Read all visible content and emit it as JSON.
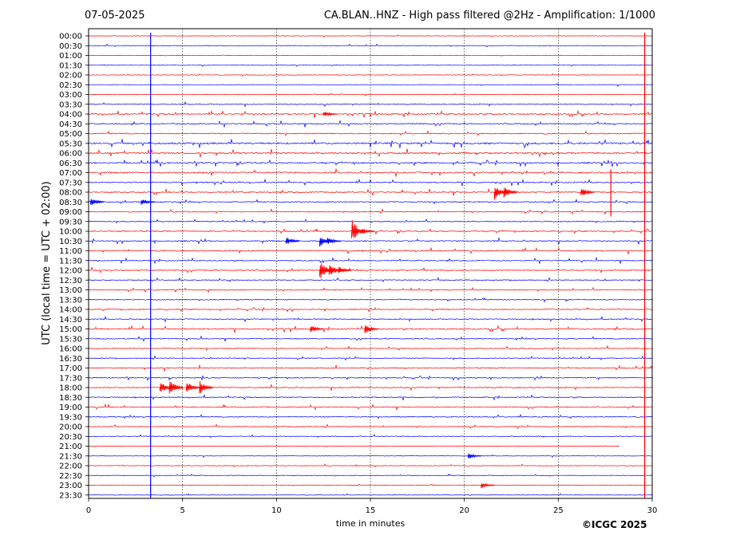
{
  "header": {
    "date": "07-05-2025",
    "title": "CA.BLAN..HNZ - High pass filtered @2Hz - Amplification: 1/1000"
  },
  "footer": {
    "copyright": "©ICGC 2025"
  },
  "chart_data": {
    "type": "line",
    "title": "CA.BLAN..HNZ - High pass filtered @2Hz - Amplification: 1/1000",
    "xlabel": "time in minutes",
    "ylabel": "UTC (local time = UTC + 02:00)",
    "xlim": [
      0,
      30
    ],
    "x_ticks": [
      0,
      5,
      10,
      15,
      20,
      25,
      30
    ],
    "x_tick_labels": [
      "0",
      "5",
      "10",
      "15",
      "20",
      "25",
      "30"
    ],
    "vertical_gridlines_at": [
      5,
      10,
      15,
      20,
      25
    ],
    "grid": "dotted vertical",
    "trace_colors": [
      "#ff0000",
      "#0000ff"
    ],
    "trace_labels": [
      "00:00",
      "00:30",
      "01:00",
      "01:30",
      "02:00",
      "02:30",
      "03:00",
      "03:30",
      "04:00",
      "04:30",
      "05:00",
      "05:30",
      "06:00",
      "06:30",
      "07:00",
      "07:30",
      "08:00",
      "08:30",
      "09:00",
      "09:30",
      "10:00",
      "10:30",
      "11:00",
      "11:30",
      "12:00",
      "12:30",
      "13:00",
      "13:30",
      "14:00",
      "14:30",
      "15:00",
      "15:30",
      "16:00",
      "16:30",
      "17:00",
      "17:30",
      "18:00",
      "18:30",
      "19:00",
      "19:30",
      "20:00",
      "20:30",
      "21:00",
      "21:30",
      "22:00",
      "22:30",
      "23:00",
      "23:30"
    ],
    "trace_noise_level": [
      0.4,
      0.5,
      0.4,
      0.5,
      0.5,
      0.5,
      0.5,
      0.8,
      1.2,
      1.1,
      1.0,
      1.6,
      1.5,
      1.3,
      1.4,
      1.1,
      1.1,
      1.0,
      0.9,
      0.9,
      1.0,
      1.1,
      1.1,
      1.0,
      1.1,
      0.9,
      0.9,
      0.8,
      0.9,
      0.9,
      1.2,
      0.9,
      0.9,
      0.8,
      1.0,
      0.9,
      1.0,
      0.9,
      0.9,
      0.9,
      0.8,
      0.7,
      0.3,
      0.4,
      0.6,
      0.5,
      0.5,
      0.5
    ],
    "trace_end_minute": [
      30,
      30,
      30,
      30,
      30,
      30,
      30,
      30,
      30,
      30,
      30,
      30,
      30,
      30,
      30,
      30,
      30,
      30,
      30,
      30,
      30,
      30,
      30,
      30,
      30,
      30,
      30,
      30,
      30,
      30,
      30,
      30,
      30,
      30,
      30,
      30,
      30,
      30,
      30,
      30,
      30,
      30,
      28.3,
      30,
      30,
      30,
      30,
      30
    ],
    "events": [
      {
        "trace": 8,
        "minute": 12.5,
        "amplitude": 4
      },
      {
        "trace": 16,
        "minute": 21.6,
        "amplitude": 10
      },
      {
        "trace": 16,
        "minute": 22.1,
        "amplitude": 8
      },
      {
        "trace": 16,
        "minute": 26.2,
        "amplitude": 6
      },
      {
        "trace": 17,
        "minute": 0.1,
        "amplitude": 6
      },
      {
        "trace": 17,
        "minute": 2.8,
        "amplitude": 4
      },
      {
        "trace": 20,
        "minute": 14.0,
        "amplitude": 16
      },
      {
        "trace": 20,
        "minute": 14.5,
        "amplitude": 5
      },
      {
        "trace": 21,
        "minute": 10.5,
        "amplitude": 6
      },
      {
        "trace": 21,
        "minute": 12.3,
        "amplitude": 7
      },
      {
        "trace": 21,
        "minute": 12.7,
        "amplitude": 5
      },
      {
        "trace": 24,
        "minute": 12.3,
        "amplitude": 14
      },
      {
        "trace": 24,
        "minute": 12.8,
        "amplitude": 9
      },
      {
        "trace": 24,
        "minute": 13.3,
        "amplitude": 5
      },
      {
        "trace": 30,
        "minute": 11.8,
        "amplitude": 5
      },
      {
        "trace": 30,
        "minute": 14.7,
        "amplitude": 6
      },
      {
        "trace": 36,
        "minute": 3.8,
        "amplitude": 8
      },
      {
        "trace": 36,
        "minute": 4.3,
        "amplitude": 10
      },
      {
        "trace": 36,
        "minute": 5.2,
        "amplitude": 8
      },
      {
        "trace": 36,
        "minute": 5.9,
        "amplitude": 9
      },
      {
        "trace": 43,
        "minute": 20.2,
        "amplitude": 4
      },
      {
        "trace": 46,
        "minute": 20.9,
        "amplitude": 4
      }
    ],
    "long_spikes": [
      {
        "minute": 3.3,
        "from_trace": 0,
        "to_trace": 47,
        "color": "#0000ff"
      },
      {
        "minute": 29.6,
        "from_trace": 0,
        "to_trace": 47,
        "color": "#ff0000"
      },
      {
        "minute": 27.8,
        "from_trace": 14,
        "to_trace": 18,
        "color": "#ff0000"
      }
    ]
  }
}
